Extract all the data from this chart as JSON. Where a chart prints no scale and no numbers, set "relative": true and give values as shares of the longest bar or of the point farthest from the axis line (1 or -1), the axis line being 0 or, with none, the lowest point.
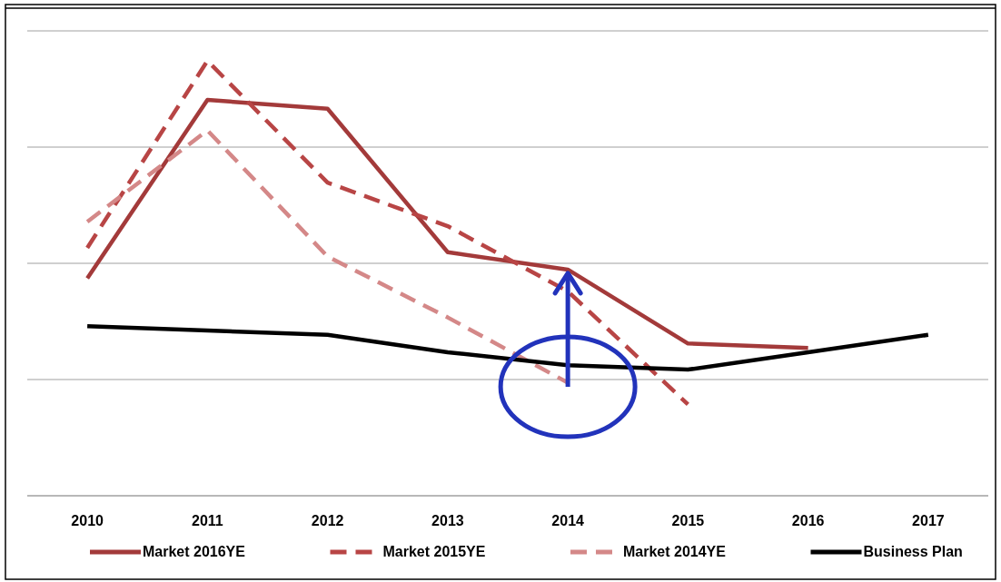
{
  "chart_data": {
    "type": "line",
    "relative": true,
    "grid": "y",
    "legend": "bottom",
    "categories": [
      "2010",
      "2011",
      "2012",
      "2013",
      "2014",
      "2015",
      "2016",
      "2017"
    ],
    "series": [
      {
        "name": "Market 2016YE",
        "color": "#a33a3a",
        "line_style": "solid",
        "values": [
          0.5,
          0.91,
          0.89,
          0.56,
          0.52,
          0.35,
          0.34,
          null
        ]
      },
      {
        "name": "Market 2015YE",
        "color": "#b84545",
        "line_style": "dashed",
        "values": [
          0.57,
          1.0,
          0.72,
          0.62,
          0.47,
          0.21,
          null,
          null
        ]
      },
      {
        "name": "Market 2014YE",
        "color": "#d48888",
        "line_style": "dashed",
        "values": [
          0.63,
          0.84,
          0.55,
          0.41,
          0.26,
          null,
          null,
          null
        ]
      },
      {
        "name": "Business Plan",
        "color": "#000000",
        "line_style": "solid",
        "values": [
          0.39,
          0.38,
          0.37,
          0.33,
          0.3,
          0.29,
          0.33,
          0.37
        ]
      }
    ]
  }
}
